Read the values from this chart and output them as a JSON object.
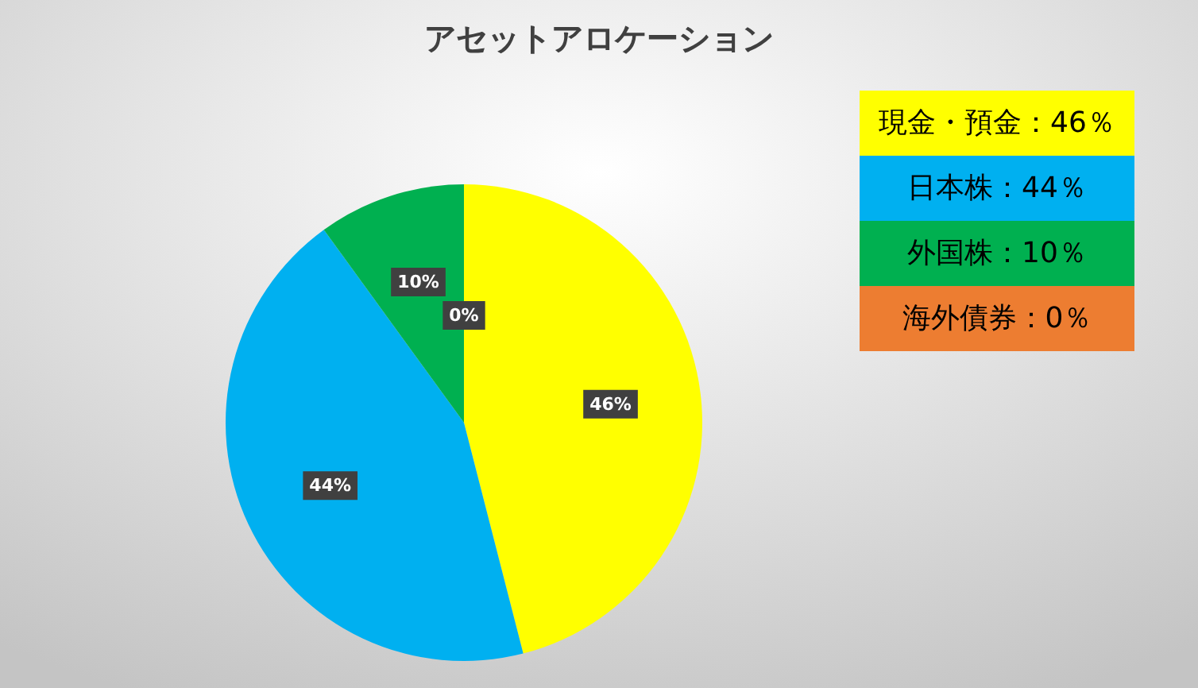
{
  "chart_data": {
    "type": "pie",
    "title": "アセットアロケーション",
    "categories": [
      "現金・預金：46％",
      "日本株：44％",
      "外国株：10％",
      "海外債券：0％"
    ],
    "values": [
      46,
      44,
      10,
      0
    ],
    "colors": [
      "#ffff00",
      "#00b0f0",
      "#00b050",
      "#ed7d31"
    ],
    "value_labels": [
      "46%",
      "44%",
      "10%",
      "0%"
    ],
    "legend": "top right"
  }
}
